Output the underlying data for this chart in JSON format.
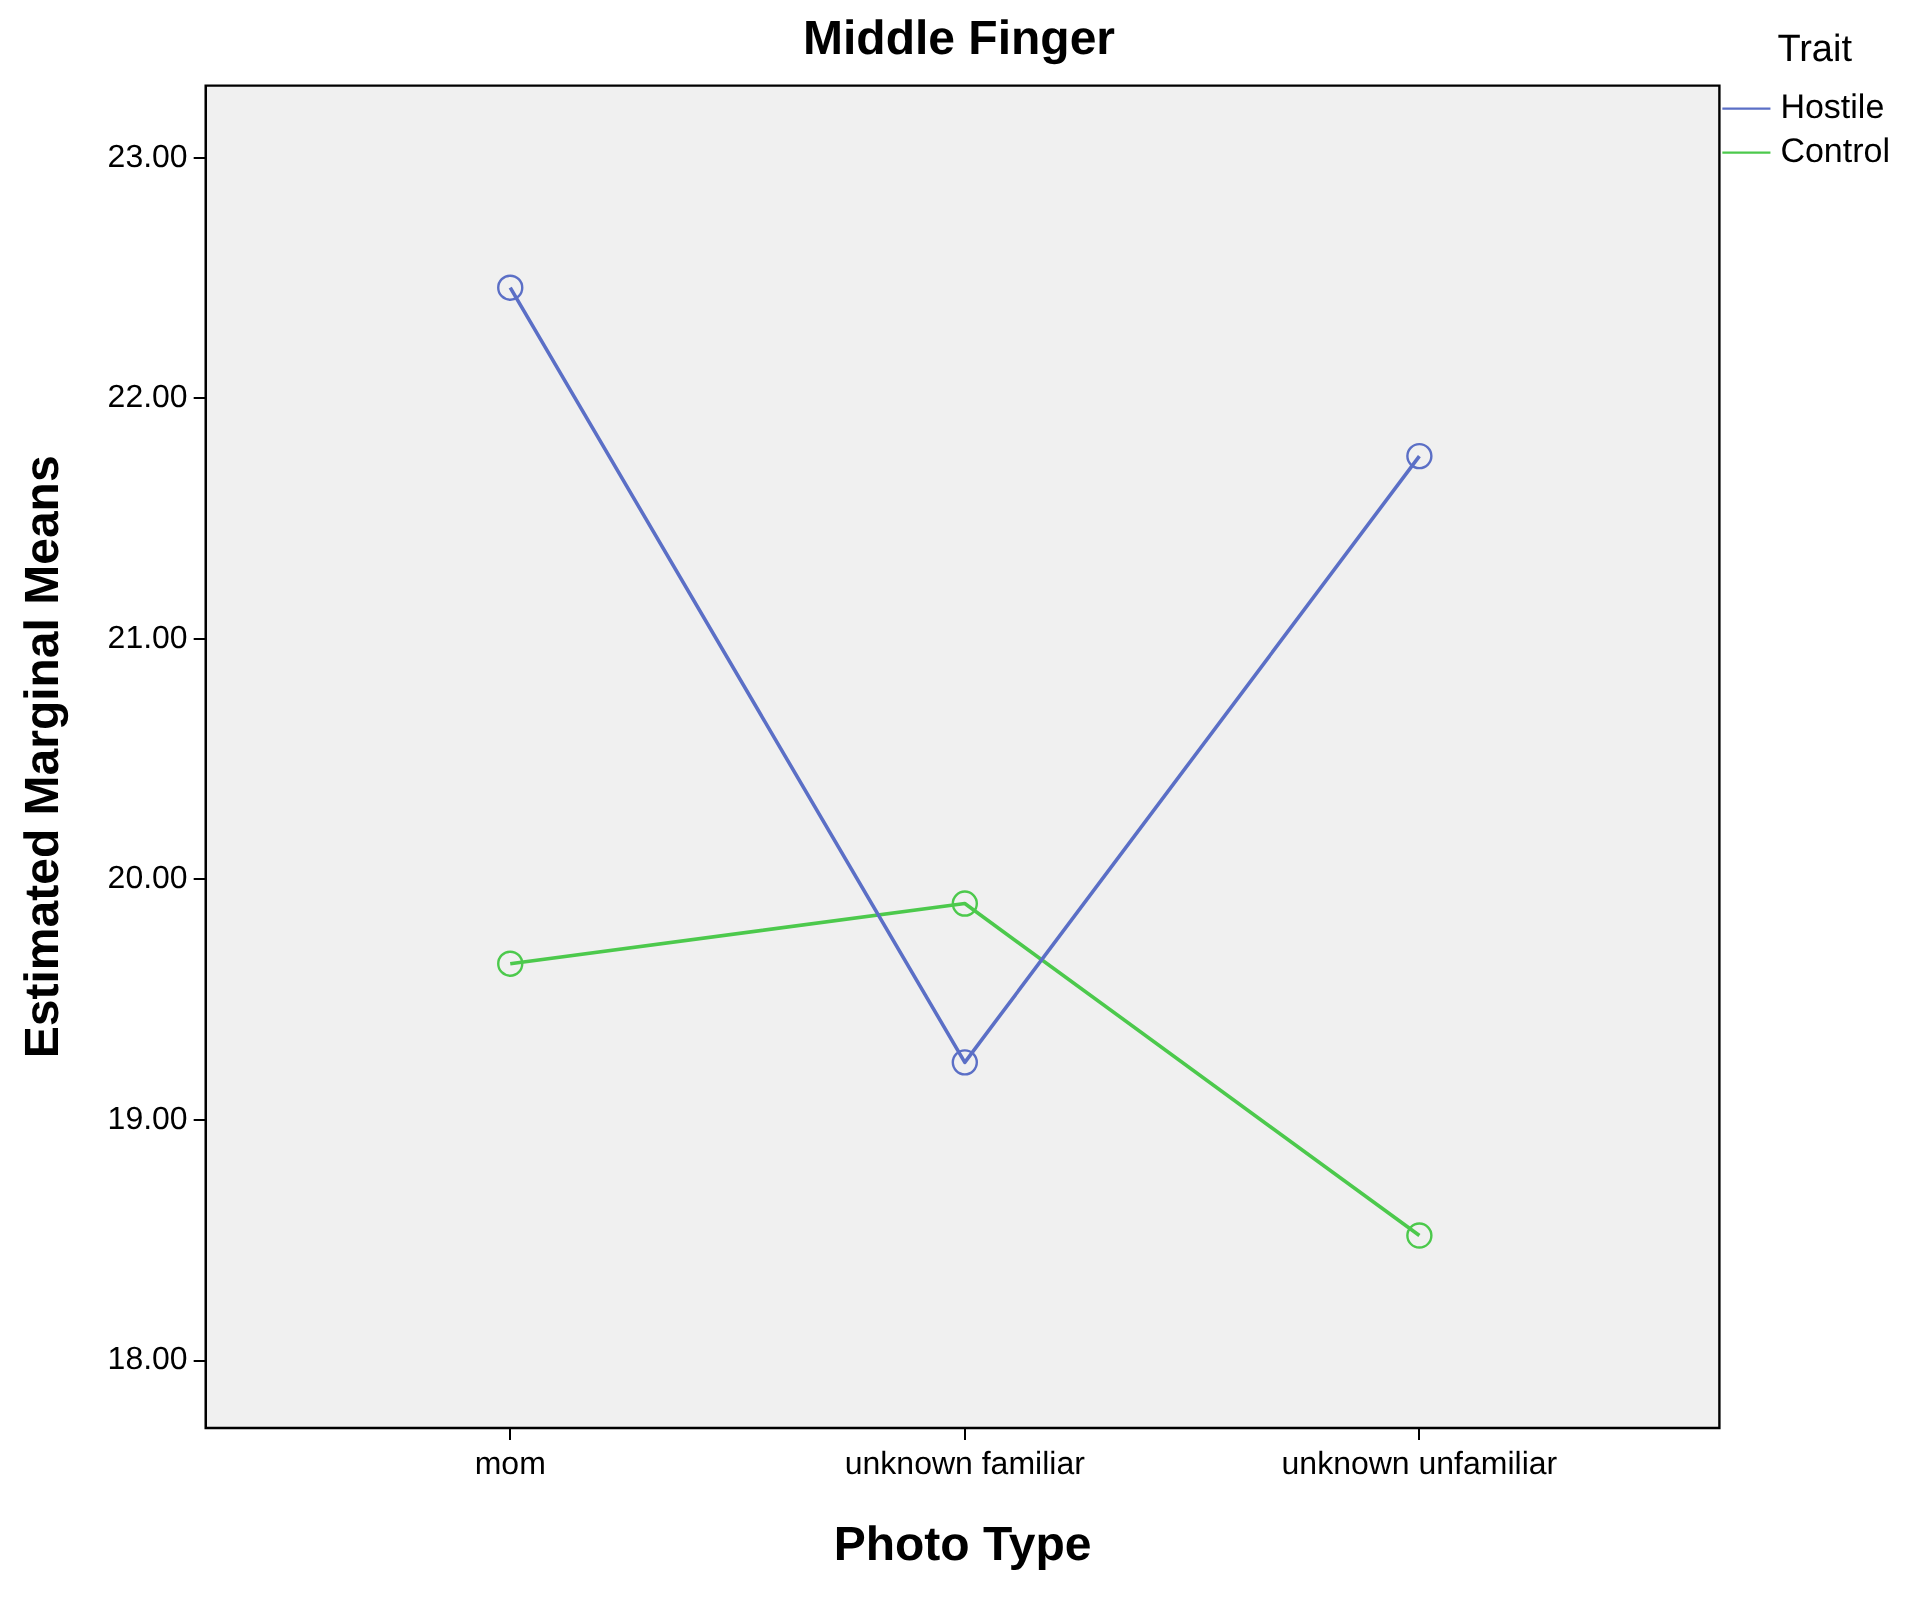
{
  "chart_data": {
    "type": "line",
    "title": "Middle Finger",
    "xlabel": "Photo Type",
    "ylabel": "Estimated Marginal Means",
    "legend_title": "Trait",
    "categories": [
      "mom",
      "unknown familiar",
      "unknown unfamiliar"
    ],
    "series": [
      {
        "name": "Hostile",
        "color": "#5b6fc6",
        "values": [
          22.46,
          19.24,
          21.76
        ]
      },
      {
        "name": "Control",
        "color": "#4cc94c",
        "values": [
          19.65,
          19.9,
          18.52
        ]
      }
    ],
    "ylim": [
      17.72,
      23.3
    ],
    "yticks": [
      {
        "value": 18,
        "label": "18.00"
      },
      {
        "value": 19,
        "label": "19.00"
      },
      {
        "value": 20,
        "label": "20.00"
      },
      {
        "value": 21,
        "label": "21.00"
      },
      {
        "value": 22,
        "label": "22.00"
      },
      {
        "value": 23,
        "label": "23.00"
      }
    ],
    "grid": false,
    "legend": "top right",
    "marker": "circle",
    "line_style": "solid"
  }
}
